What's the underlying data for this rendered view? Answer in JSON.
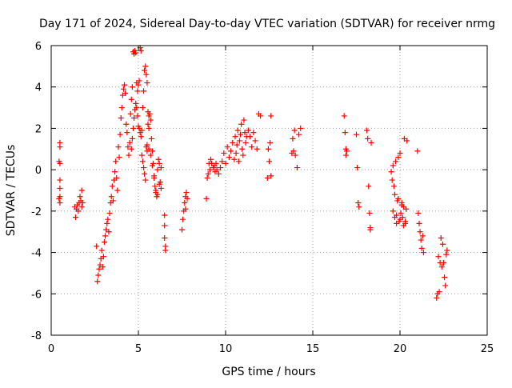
{
  "chart_data": {
    "type": "scatter",
    "title": "Day 171 of 2024, Sidereal Day-to-day VTEC variation (SDTVAR) for receiver nrmg",
    "xlabel": "GPS time / hours",
    "ylabel": "SDTVAR / TECUs",
    "xlim": [
      0,
      25
    ],
    "ylim": [
      -8,
      6
    ],
    "xticks": [
      0,
      5,
      10,
      15,
      20,
      25
    ],
    "yticks": [
      -8,
      -6,
      -4,
      -2,
      0,
      2,
      4,
      6
    ],
    "xtick_labels": [
      "0",
      "5",
      "10",
      "15",
      "20",
      "25"
    ],
    "ytick_labels": [
      "-8",
      "-6",
      "-4",
      "-2",
      "0",
      "2",
      "4",
      "6"
    ],
    "grid": true,
    "marker": "plus",
    "color": "#ff0000",
    "series": [
      {
        "name": "SDTVAR",
        "x": [
          0.45,
          0.45,
          0.5,
          0.5,
          0.5,
          0.5,
          0.5,
          0.5,
          0.5,
          1.35,
          1.4,
          1.45,
          1.5,
          1.55,
          1.6,
          1.65,
          1.7,
          1.75,
          1.75,
          1.8,
          2.6,
          2.65,
          2.7,
          2.75,
          2.8,
          2.85,
          2.9,
          2.95,
          3.0,
          3.05,
          3.1,
          3.15,
          3.2,
          3.25,
          3.3,
          3.35,
          3.4,
          3.45,
          3.5,
          3.55,
          3.6,
          3.65,
          3.7,
          3.75,
          3.8,
          3.85,
          3.9,
          3.95,
          4.0,
          4.05,
          4.1,
          4.15,
          4.2,
          4.25,
          4.3,
          4.35,
          4.4,
          4.45,
          4.5,
          4.55,
          4.6,
          4.65,
          4.7,
          4.75,
          4.8,
          4.85,
          4.9,
          4.95,
          5.0,
          5.05,
          5.1,
          5.15,
          4.6,
          4.65,
          4.7,
          4.75,
          4.8,
          4.85,
          4.9,
          4.95,
          5.0,
          5.05,
          5.1,
          5.15,
          5.2,
          5.25,
          5.3,
          5.35,
          5.4,
          5.45,
          5.5,
          5.55,
          5.6,
          5.2,
          5.25,
          5.3,
          5.35,
          5.4,
          5.45,
          5.5,
          5.55,
          5.6,
          5.65,
          5.7,
          5.75,
          5.8,
          5.85,
          5.9,
          5.95,
          6.0,
          6.05,
          6.1,
          6.15,
          6.2,
          6.25,
          6.3,
          5.5,
          5.6,
          5.7,
          5.8,
          5.9,
          6.0,
          6.1,
          6.2,
          6.3,
          6.5,
          6.5,
          6.5,
          6.55,
          6.55,
          7.5,
          7.55,
          7.6,
          7.65,
          7.7,
          7.7,
          7.75,
          7.8,
          8.9,
          8.95,
          9.0,
          9.05,
          9.1,
          9.15,
          9.2,
          9.3,
          9.35,
          9.4,
          9.45,
          9.5,
          9.6,
          9.7,
          9.8,
          9.9,
          10.0,
          10.1,
          10.2,
          10.3,
          10.4,
          10.5,
          10.55,
          10.6,
          10.65,
          10.7,
          10.75,
          10.8,
          10.85,
          10.9,
          10.95,
          11.0,
          11.05,
          11.1,
          11.15,
          11.2,
          11.3,
          11.4,
          11.5,
          11.6,
          11.7,
          11.8,
          11.9,
          12.0,
          12.4,
          12.45,
          12.5,
          12.55,
          12.6,
          12.6,
          13.8,
          13.85,
          13.9,
          13.95,
          14.0,
          14.1,
          14.2,
          14.3,
          16.8,
          16.85,
          16.9,
          16.9,
          16.95,
          17.5,
          17.55,
          17.6,
          17.65,
          18.1,
          18.15,
          18.2,
          18.25,
          18.3,
          18.3,
          18.35,
          19.5,
          19.55,
          19.6,
          19.65,
          19.7,
          19.75,
          19.8,
          19.85,
          19.9,
          19.95,
          20.0,
          20.05,
          20.1,
          20.15,
          20.2,
          20.25,
          20.3,
          20.35,
          20.4,
          19.6,
          19.7,
          19.8,
          19.9,
          20.0,
          20.1,
          20.2,
          20.3,
          21.0,
          21.05,
          21.1,
          21.15,
          21.2,
          21.25,
          21.3,
          21.35,
          22.1,
          22.15,
          22.2,
          22.25,
          22.3,
          22.35,
          22.4,
          22.45,
          22.5,
          22.55,
          22.6,
          22.65,
          22.7
        ],
        "y": [
          0.4,
          -1.4,
          1.3,
          0.3,
          -0.5,
          -1.3,
          -1.6,
          -0.9,
          1.1,
          -1.8,
          -2.3,
          -1.9,
          -1.7,
          -2.0,
          -1.6,
          -1.3,
          -1.5,
          -1.8,
          -1.0,
          -1.6,
          -3.7,
          -5.4,
          -5.1,
          -4.8,
          -4.6,
          -4.3,
          -3.9,
          -4.7,
          -4.2,
          -3.5,
          -3.2,
          -2.9,
          -2.6,
          -2.4,
          -3.0,
          -2.1,
          -1.6,
          -1.3,
          -0.8,
          -1.5,
          -0.5,
          -0.1,
          0.4,
          -0.4,
          -1.0,
          1.1,
          0.6,
          1.7,
          2.5,
          3.0,
          3.6,
          3.9,
          4.1,
          3.7,
          2.2,
          1.8,
          1.1,
          0.7,
          1.3,
          2.7,
          3.4,
          4.0,
          5.7,
          5.6,
          5.75,
          5.65,
          4.2,
          3.8,
          4.1,
          4.3,
          5.9,
          5.75,
          1.0,
          1.5,
          2.0,
          2.5,
          2.9,
          3.2,
          3.0,
          2.6,
          2.1,
          2.0,
          1.8,
          1.6,
          1.9,
          3.0,
          3.8,
          4.8,
          5.0,
          4.6,
          4.2,
          2.8,
          2.0,
          0.7,
          0.4,
          0.1,
          -0.2,
          -0.5,
          1.1,
          0.9,
          2.2,
          2.6,
          2.7,
          2.4,
          1.5,
          0.9,
          0.3,
          -0.3,
          -0.8,
          -1.1,
          -1.3,
          0.0,
          0.5,
          0.3,
          -0.6,
          -0.9,
          1.2,
          1.0,
          0.7,
          0.2,
          -0.4,
          -1.0,
          -1.2,
          -0.7,
          0.1,
          -2.2,
          -2.7,
          -3.3,
          -3.7,
          -3.9,
          -2.9,
          -2.4,
          -2.0,
          -1.6,
          -1.3,
          -1.9,
          -1.1,
          -1.4,
          -1.4,
          -0.4,
          -0.2,
          0.3,
          0.0,
          0.5,
          0.3,
          0.1,
          0.2,
          -0.1,
          0.3,
          0.0,
          -0.2,
          0.1,
          0.4,
          0.8,
          0.3,
          1.1,
          0.6,
          0.9,
          1.3,
          0.5,
          1.6,
          0.8,
          1.2,
          1.9,
          0.4,
          1.4,
          1.7,
          2.2,
          1.0,
          0.7,
          2.4,
          1.8,
          1.3,
          1.6,
          1.9,
          1.6,
          1.1,
          1.8,
          1.4,
          1.0,
          2.7,
          2.6,
          -0.4,
          1.0,
          0.4,
          1.3,
          2.6,
          -0.3,
          0.8,
          1.5,
          0.9,
          1.9,
          0.7,
          0.1,
          1.7,
          2.0,
          2.6,
          1.8,
          1.0,
          0.7,
          0.9,
          1.7,
          0.1,
          -1.6,
          -1.8,
          1.9,
          1.5,
          -0.8,
          -2.1,
          -2.8,
          -2.9,
          1.3,
          -0.1,
          -0.5,
          0.2,
          -0.8,
          -1.2,
          0.4,
          -2.2,
          -1.5,
          0.6,
          -2.5,
          0.8,
          -2.1,
          -1.7,
          -2.3,
          -1.8,
          1.5,
          -2.6,
          -1.9,
          1.4,
          -2.0,
          -2.3,
          -2.6,
          -1.4,
          -2.4,
          -1.6,
          -2.7,
          -2.5,
          0.9,
          -2.1,
          -2.6,
          -3.0,
          -3.4,
          -3.8,
          -3.2,
          -4.0,
          -6.2,
          -6.0,
          -4.2,
          -5.9,
          -4.5,
          -3.3,
          -4.7,
          -3.6,
          -4.5,
          -5.2,
          -5.6,
          -4.1,
          -3.9
        ]
      }
    ]
  }
}
